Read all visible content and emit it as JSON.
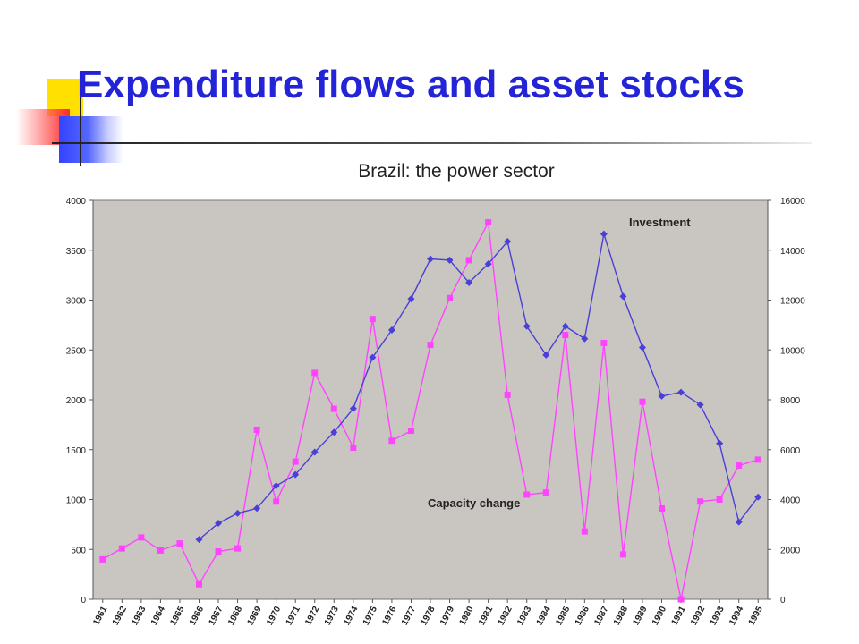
{
  "slide": {
    "title": "Expenditure flows and asset stocks",
    "subtitle": "Brazil: the power sector"
  },
  "colors": {
    "title": "#2323d8",
    "plot_background": "#c9c6c2",
    "investment_line": "#4a3fd6",
    "capacity_line": "#ff44ff"
  },
  "chart_data": {
    "type": "line",
    "categories": [
      "1961",
      "1962",
      "1963",
      "1964",
      "1965",
      "1966",
      "1967",
      "1968",
      "1969",
      "1970",
      "1971",
      "1972",
      "1973",
      "1974",
      "1975",
      "1976",
      "1977",
      "1978",
      "1979",
      "1980",
      "1981",
      "1982",
      "1983",
      "1984",
      "1985",
      "1986",
      "1987",
      "1988",
      "1989",
      "1990",
      "1991",
      "1992",
      "1993",
      "1994",
      "1995"
    ],
    "left_axis": {
      "min": 0,
      "max": 4000,
      "ticks": [
        0,
        500,
        1000,
        1500,
        2000,
        2500,
        3000,
        3500,
        4000
      ]
    },
    "right_axis": {
      "min": 0,
      "max": 16000,
      "ticks": [
        0,
        2000,
        4000,
        6000,
        8000,
        10000,
        12000,
        14000,
        16000
      ]
    },
    "grid": false,
    "series": [
      {
        "name": "Capacity change",
        "axis": "left",
        "marker": "square",
        "color": "#ff44ff",
        "values": [
          400,
          510,
          620,
          490,
          560,
          150,
          480,
          510,
          1700,
          980,
          1380,
          2270,
          1910,
          1520,
          2810,
          1590,
          1690,
          2550,
          3020,
          3400,
          3780,
          2050,
          1050,
          1070,
          2650,
          680,
          2570,
          450,
          1980,
          910,
          0,
          980,
          1000,
          1340,
          1400
        ]
      },
      {
        "name": "Investment",
        "axis": "right",
        "marker": "diamond",
        "color": "#4a3fd6",
        "values": [
          null,
          null,
          null,
          null,
          null,
          2400,
          3050,
          3450,
          3650,
          4550,
          5000,
          5900,
          6700,
          7650,
          9700,
          10800,
          12050,
          13650,
          13600,
          12700,
          13450,
          14350,
          10950,
          9800,
          10950,
          10450,
          14650,
          12150,
          10100,
          8150,
          8300,
          7800,
          6250,
          3100,
          4100
        ]
      }
    ]
  }
}
